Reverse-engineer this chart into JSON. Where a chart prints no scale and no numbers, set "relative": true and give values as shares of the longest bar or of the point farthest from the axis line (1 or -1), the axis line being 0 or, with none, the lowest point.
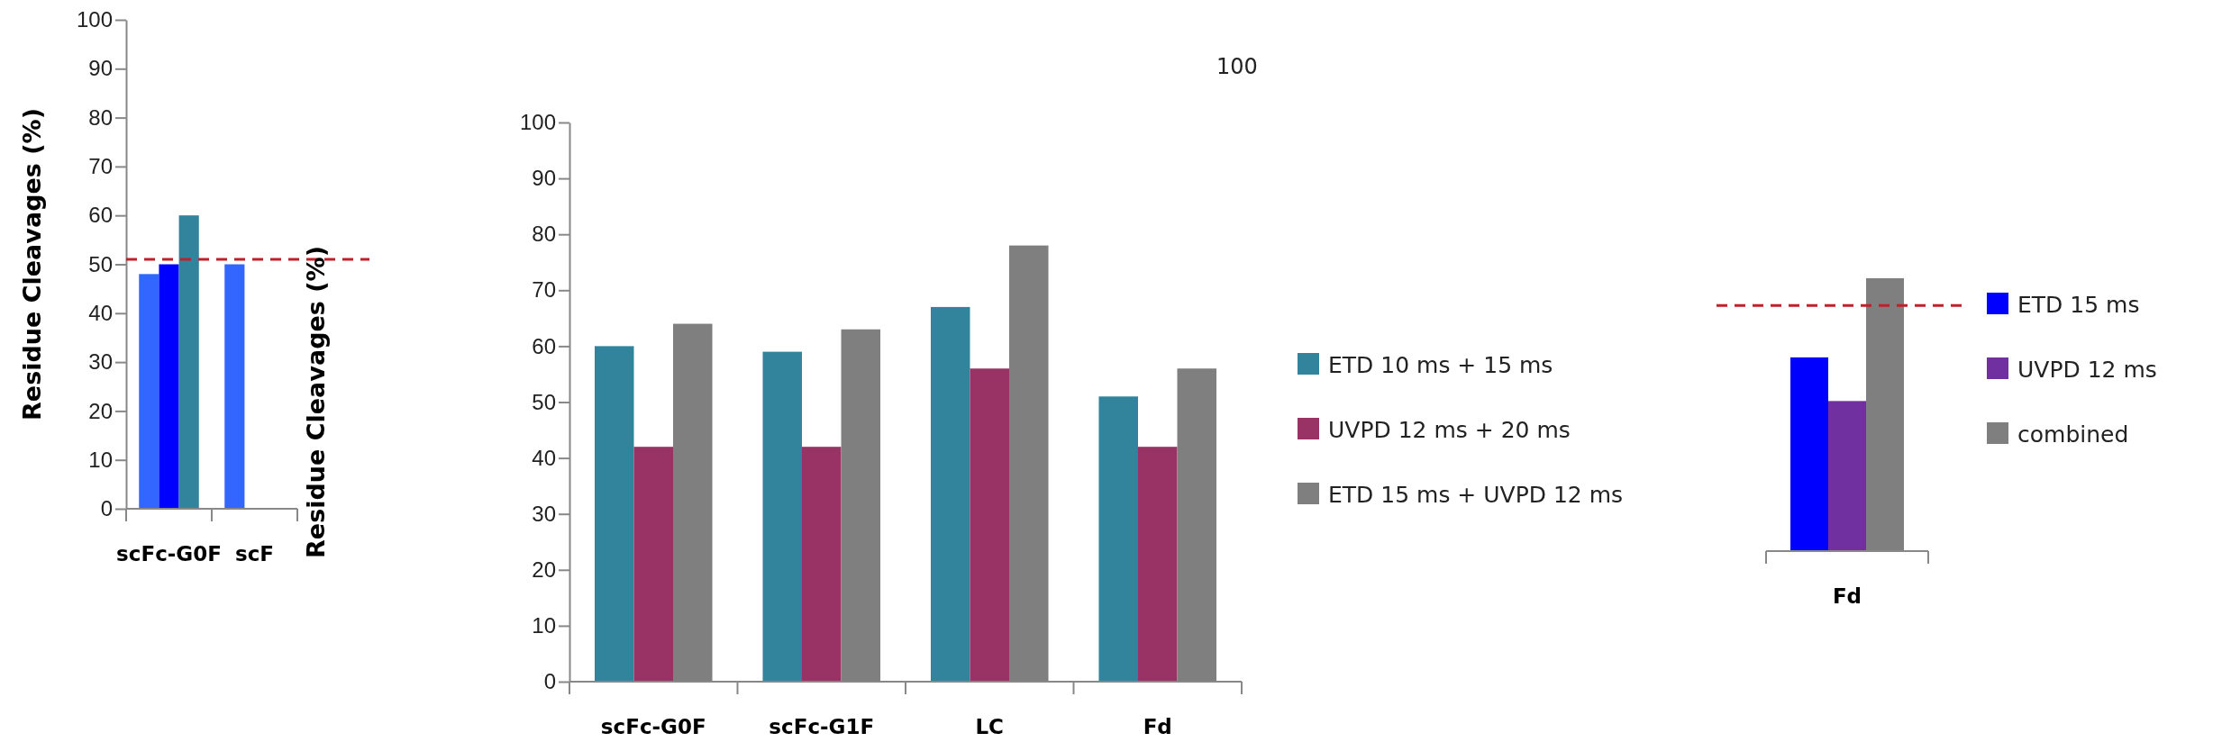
{
  "chart_data": [
    {
      "type": "bar",
      "ylabel": "Residue Cleavages (%)",
      "categories": [
        "scFc-G0F",
        "scF"
      ],
      "ylim": [
        0,
        100
      ],
      "yticks": [
        0,
        10,
        20,
        30,
        40,
        50,
        60,
        70,
        80,
        90,
        100
      ],
      "legend": false,
      "series": [
        {
          "color": "#3366ff",
          "values": [
            48,
            50
          ]
        },
        {
          "color": "#0000ff",
          "values": [
            50,
            null
          ]
        },
        {
          "color": "#31849b",
          "values": [
            60,
            null
          ]
        }
      ],
      "ref_lines": [
        {
          "axis": "y",
          "value": 51,
          "color": "#c0202a",
          "line_style": "dashed"
        }
      ]
    },
    {
      "type": "bar",
      "ylabel": "Residue Cleavages (%)",
      "categories": [
        "scFc-G0F",
        "scFc-G1F",
        "LC",
        "Fd"
      ],
      "ylim": [
        0,
        100
      ],
      "yticks": [
        0,
        10,
        20,
        30,
        40,
        50,
        60,
        70,
        80,
        90,
        100
      ],
      "legend": "right",
      "series": [
        {
          "name": "ETD 10 ms + 15 ms",
          "color": "#31849b",
          "values": [
            60,
            59,
            67,
            51
          ]
        },
        {
          "name": "UVPD 12 ms + 20 ms",
          "color": "#993366",
          "values": [
            42,
            42,
            56,
            42
          ]
        },
        {
          "name": "ETD 15 ms + UVPD 12 ms",
          "color": "#7f7f7f",
          "values": [
            64,
            63,
            78,
            56
          ]
        }
      ]
    },
    {
      "type": "bar",
      "relative": true,
      "categories": [
        "Fd"
      ],
      "legend": "right",
      "annotations": [
        "100"
      ],
      "series": [
        {
          "name": "ETD 15 ms",
          "color": "#0000ff",
          "values": [
            0.71
          ]
        },
        {
          "name": "UVPD 12 ms",
          "color": "#7030a0",
          "values": [
            0.55
          ]
        },
        {
          "name": "combined",
          "color": "#7f7f7f",
          "values": [
            1
          ]
        }
      ],
      "ref_lines": [
        {
          "axis": "y",
          "value": 0.9,
          "color": "#c0202a",
          "line_style": "dashed"
        }
      ]
    }
  ]
}
